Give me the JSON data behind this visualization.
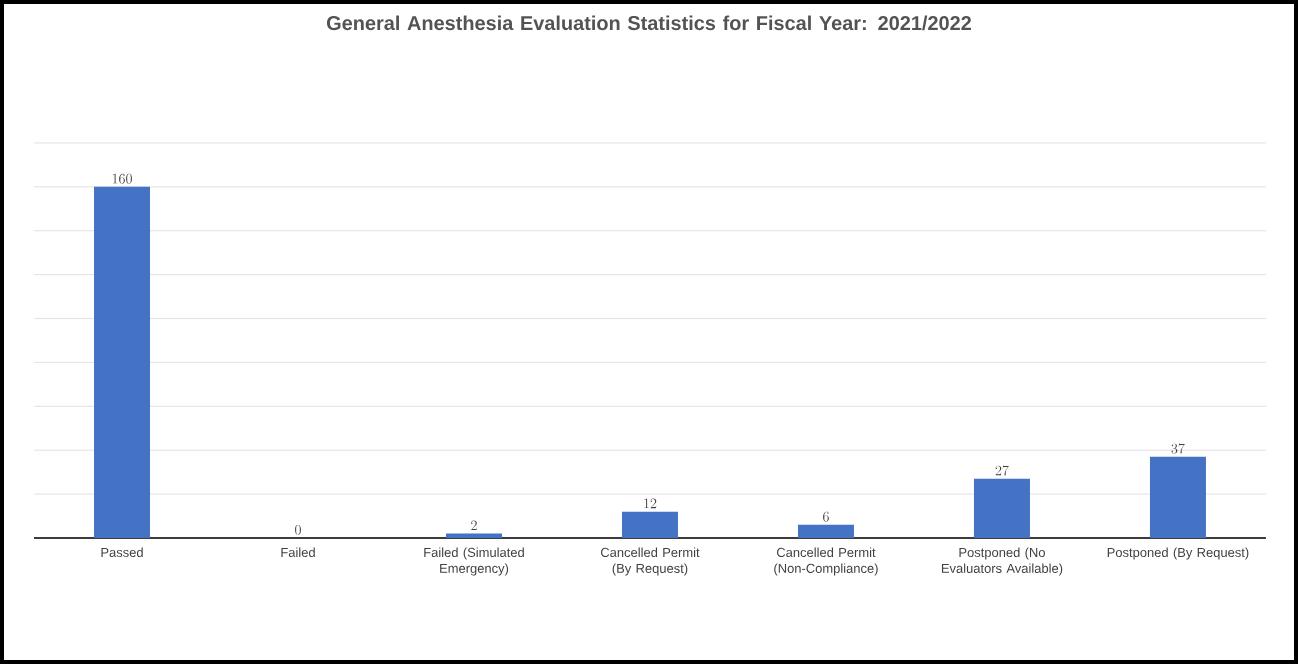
{
  "chart_data": {
    "type": "bar",
    "title": "General Anesthesia Evaluation Statistics for Fiscal Year: 2021/2022",
    "categories": [
      "Passed",
      "Failed",
      "Failed (Simulated Emergency)",
      "Cancelled Permit (By Request)",
      "Cancelled Permit (Non-Compliance)",
      "Postponed (No Evaluators Available)",
      "Postponed (By Request)"
    ],
    "values": [
      160,
      0,
      2,
      12,
      6,
      27,
      37
    ],
    "color": "#4472c4",
    "ylim": [
      0,
      180
    ],
    "yticks": [
      {
        "value": 0,
        "label": null
      },
      {
        "value": 20,
        "label": null
      },
      {
        "value": 40,
        "label": null
      },
      {
        "value": 60,
        "label": null
      },
      {
        "value": 80,
        "label": null
      },
      {
        "value": 100,
        "label": null
      },
      {
        "value": 120,
        "label": null
      },
      {
        "value": 140,
        "label": null
      },
      {
        "value": 160,
        "label": null
      },
      {
        "value": 180,
        "label": null
      }
    ],
    "tick_labels": "x",
    "grid": "y",
    "data_labels": true
  }
}
